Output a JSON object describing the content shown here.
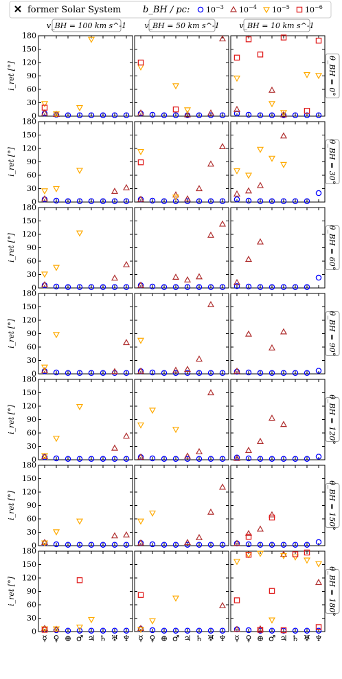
{
  "legend": {
    "former_label": "former Solar System",
    "b_label": "b_BH / pc:",
    "entries": [
      {
        "label": "10^-3",
        "marker": "circle",
        "color": "#0000ff"
      },
      {
        "label": "10^-4",
        "marker": "triangle-up",
        "color": "#b03030"
      },
      {
        "label": "10^-5",
        "marker": "triangle-down",
        "color": "#ffaa00"
      },
      {
        "label": "10^-6",
        "marker": "square",
        "color": "#e02020"
      }
    ]
  },
  "columns": [
    "v_BH = 100 km s^-1",
    "v_BH = 50 km s^-1",
    "v_BH = 10 km s^-1"
  ],
  "rows": [
    "θ_BH = 0°",
    "θ_BH = 30°",
    "θ_BH = 60°",
    "θ_BH = 90°",
    "θ_BH = 120°",
    "θ_BH = 150°",
    "θ_BH = 180°"
  ],
  "chart_data": {
    "type": "scatter",
    "ylabel": "i_ret [°]",
    "ylim": [
      0,
      180
    ],
    "yticks": [
      0,
      30,
      60,
      90,
      120,
      150,
      180
    ],
    "categories": [
      "☿",
      "♀",
      "⊕",
      "♂",
      "♃",
      "♄",
      "♅",
      "♆"
    ],
    "panels": [
      [
        {
          "s1": [
            6,
            3,
            2,
            2,
            2,
            2,
            2,
            2
          ],
          "s2": {
            "0": 7,
            "1": 4
          },
          "s3": {
            "0": 28,
            "1": 5,
            "3": 19,
            "4": 172
          },
          "s4": {
            "0": 19
          }
        },
        {
          "s1": [
            6,
            3,
            2,
            2,
            2,
            2,
            2,
            2
          ],
          "s2": {
            "0": 7,
            "4": 3,
            "6": 7,
            "7": 173
          },
          "s3": {
            "0": 110,
            "3": 68,
            "4": 14
          },
          "s4": {
            "0": 120,
            "3": 15
          }
        },
        {
          "s1": [
            6,
            3,
            2,
            2,
            2,
            2,
            2,
            2
          ],
          "s2": {
            "0": 15,
            "3": 58,
            "4": 3
          },
          "s3": {
            "0": 85,
            "3": 28,
            "4": 8,
            "6": 93,
            "7": 91
          },
          "s4": {
            "0": 131,
            "1": 172,
            "2": 138,
            "4": 176,
            "6": 12,
            "7": 169
          }
        }
      ],
      [
        {
          "s1": [
            6,
            3,
            2,
            2,
            2,
            2,
            2,
            2
          ],
          "s2": {
            "0": 7,
            "6": 24,
            "7": 32
          },
          "s3": {
            "0": 25,
            "1": 30,
            "3": 71
          },
          "s4": {}
        },
        {
          "s1": [
            6,
            3,
            2,
            2,
            2,
            2,
            2,
            2
          ],
          "s2": {
            "0": 6,
            "3": 16,
            "4": 7,
            "5": 30,
            "6": 85,
            "7": 124
          },
          "s3": {
            "0": 113,
            "3": 11
          },
          "s4": {
            "0": 89
          }
        },
        {
          "s1": [
            6,
            3,
            2,
            2,
            2,
            2,
            2,
            20
          ],
          "s2": {
            "0": 18,
            "1": 25,
            "2": 37,
            "4": 148
          },
          "s3": {
            "0": 70,
            "1": 60,
            "2": 118,
            "3": 98,
            "4": 84
          },
          "s4": {}
        }
      ],
      [
        {
          "s1": [
            6,
            3,
            2,
            2,
            2,
            2,
            2,
            2
          ],
          "s2": {
            "0": 7,
            "6": 22,
            "7": 52
          },
          "s3": {
            "0": 31,
            "1": 46,
            "3": 123
          },
          "s4": {}
        },
        {
          "s1": [
            6,
            3,
            2,
            2,
            2,
            2,
            2,
            2
          ],
          "s2": {
            "0": 6,
            "3": 24,
            "4": 18,
            "5": 25,
            "6": 118,
            "7": 143
          },
          "s3": {},
          "s4": {}
        },
        {
          "s1": [
            4,
            3,
            2,
            2,
            2,
            2,
            2,
            23
          ],
          "s2": {
            "0": 12,
            "1": 64,
            "2": 103
          },
          "s3": {},
          "s4": {}
        }
      ],
      [
        {
          "s1": [
            6,
            3,
            2,
            2,
            2,
            2,
            2,
            2
          ],
          "s2": {
            "0": 7,
            "6": 5,
            "7": 70
          },
          "s3": {
            "0": 15,
            "1": 88
          },
          "s4": {}
        },
        {
          "s1": [
            6,
            3,
            2,
            2,
            2,
            2,
            2,
            2
          ],
          "s2": {
            "0": 6,
            "3": 8,
            "4": 10,
            "5": 33,
            "6": 155
          },
          "s3": {
            "0": 75
          },
          "s4": {}
        },
        {
          "s1": [
            5,
            3,
            2,
            2,
            2,
            2,
            2,
            7
          ],
          "s2": {
            "0": 6,
            "1": 89,
            "3": 58,
            "4": 94
          },
          "s3": {},
          "s4": {}
        }
      ],
      [
        {
          "s1": [
            6,
            3,
            2,
            2,
            2,
            2,
            2,
            2
          ],
          "s2": {
            "0": 7,
            "6": 26,
            "7": 53
          },
          "s3": {
            "0": 9,
            "1": 48,
            "3": 119
          },
          "s4": {}
        },
        {
          "s1": [
            6,
            3,
            2,
            2,
            2,
            2,
            2,
            2
          ],
          "s2": {
            "0": 6,
            "4": 8,
            "5": 18,
            "6": 150
          },
          "s3": {
            "0": 78,
            "1": 111,
            "3": 68
          },
          "s4": {}
        },
        {
          "s1": [
            5,
            3,
            2,
            2,
            2,
            2,
            2,
            7
          ],
          "s2": {
            "0": 3,
            "1": 21,
            "2": 41,
            "3": 93,
            "4": 79
          },
          "s3": {},
          "s4": {}
        }
      ],
      [
        {
          "s1": [
            6,
            3,
            2,
            2,
            2,
            2,
            2,
            2
          ],
          "s2": {
            "0": 7,
            "6": 22,
            "7": 24
          },
          "s3": {
            "0": 6,
            "1": 31,
            "3": 55
          },
          "s4": {}
        },
        {
          "s1": [
            6,
            3,
            2,
            2,
            2,
            2,
            2,
            2
          ],
          "s2": {
            "0": 6,
            "4": 7,
            "5": 18,
            "6": 75,
            "7": 131
          },
          "s3": {
            "0": 55,
            "1": 73
          },
          "s4": {}
        },
        {
          "s1": [
            5,
            3,
            2,
            2,
            2,
            2,
            2,
            8
          ],
          "s2": {
            "0": 5,
            "1": 27,
            "2": 37,
            "3": 69
          },
          "s3": {},
          "s4": {
            "1": 20,
            "3": 63
          }
        }
      ],
      [
        {
          "s1": [
            6,
            3,
            2,
            2,
            2,
            2,
            2,
            2
          ],
          "s2": {
            "0": 7,
            "1": 5
          },
          "s3": {
            "0": 6,
            "1": 6,
            "3": 10,
            "4": 27
          },
          "s4": {
            "0": 4,
            "3": 115
          }
        },
        {
          "s1": [
            6,
            3,
            2,
            2,
            2,
            2,
            2,
            2
          ],
          "s2": {
            "0": 7,
            "7": 58
          },
          "s3": {
            "0": 5,
            "1": 24,
            "3": 75
          },
          "s4": {
            "0": 82
          }
        },
        {
          "s1": [
            5,
            3,
            2,
            2,
            2,
            2,
            2,
            2
          ],
          "s2": {
            "0": 5,
            "2": 6,
            "4": 173,
            "7": 110
          },
          "s3": {
            "0": 157,
            "1": 172,
            "2": 175,
            "3": 26,
            "4": 170,
            "5": 167,
            "6": 160,
            "7": 152
          },
          "s4": {
            "0": 70,
            "1": 172,
            "2": 4,
            "3": 91,
            "4": 3,
            "5": 173,
            "6": 177,
            "7": 10
          }
        }
      ]
    ]
  }
}
